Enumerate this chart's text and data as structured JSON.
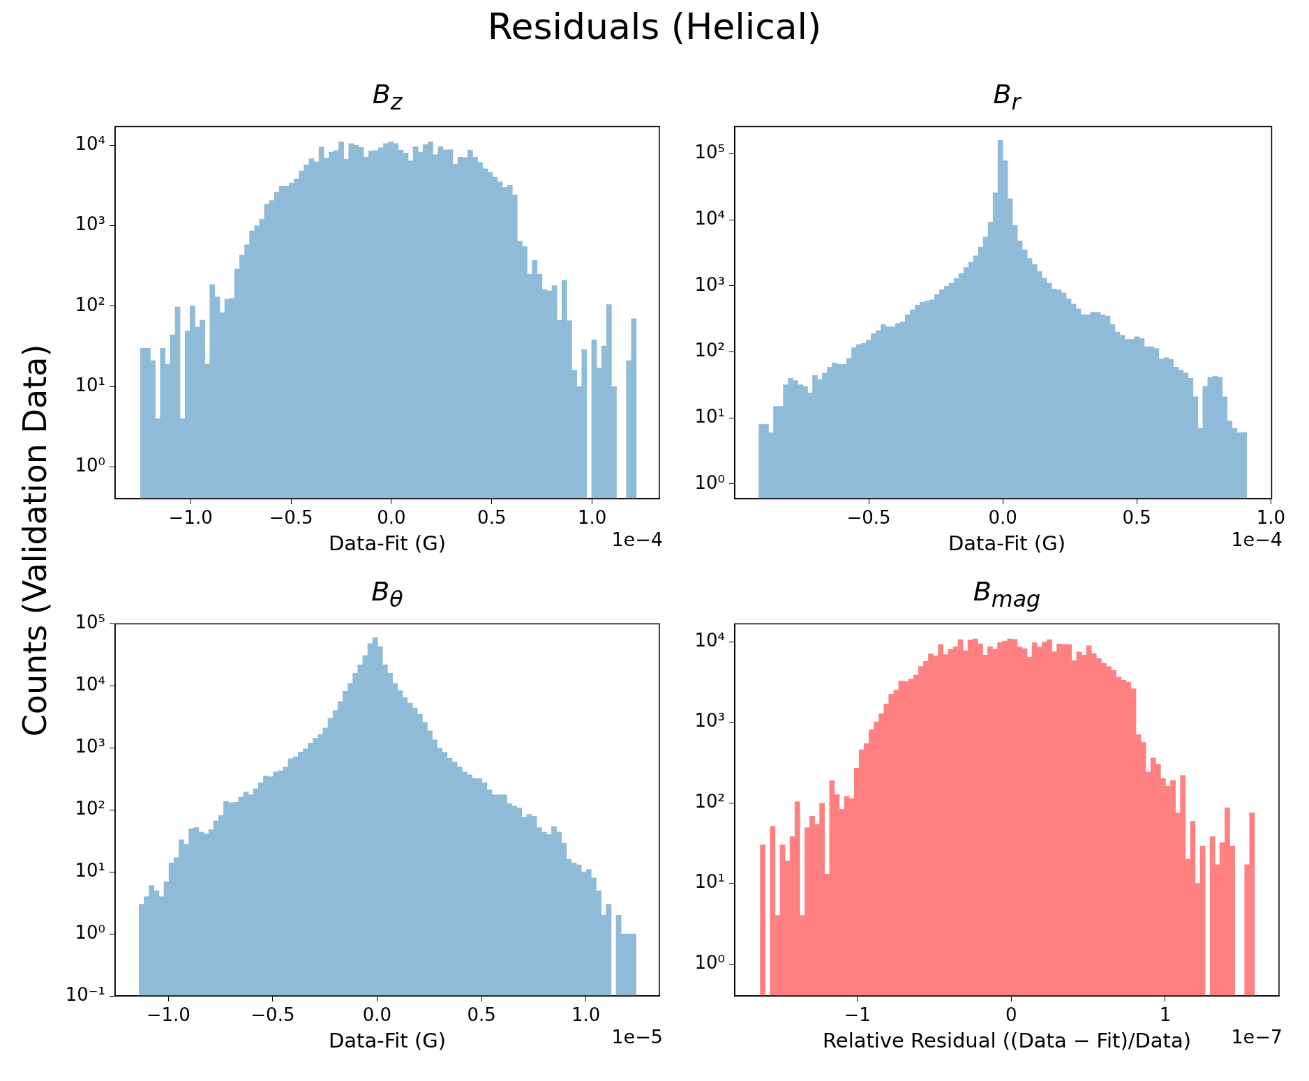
{
  "chart_data": [
    {
      "type": "histogram",
      "title": "B$_{z}$",
      "xlabel": "Data-Fit (G)",
      "ylabel": "Counts (Validation Data)",
      "annotations": [
        "Residuals (Helical)",
        "1e−4"
      ],
      "color": "#8fbbd9",
      "log": "y",
      "xlim": [
        -1.376,
        1.335
      ],
      "ylim": [
        0.405,
        17000
      ],
      "xticks": [
        {
          "value": -1,
          "label": "−1.0"
        },
        {
          "value": -0.5,
          "label": "−0.5"
        },
        {
          "value": 0,
          "label": "0.0"
        },
        {
          "value": 0.5,
          "label": "0.5"
        },
        {
          "value": 1,
          "label": "1.0"
        }
      ],
      "yticks": [
        {
          "value": 1,
          "label": "10⁰"
        },
        {
          "value": 10,
          "label": "10¹"
        },
        {
          "value": 100,
          "label": "10²"
        },
        {
          "value": 1000,
          "label": "10³"
        },
        {
          "value": 10000,
          "label": "10⁴"
        }
      ],
      "bins": [
        -1.25,
        -1.2253,
        -1.2006,
        -1.1759,
        -1.1512,
        -1.1265,
        -1.1018,
        -1.0771,
        -1.0524,
        -1.0277,
        -1.003,
        -0.9783,
        -0.9536,
        -0.9289,
        -0.9042,
        -0.8795,
        -0.8548,
        -0.8301,
        -0.8054,
        -0.7807,
        -0.756,
        -0.7313,
        -0.7066,
        -0.6819,
        -0.6572,
        -0.6325,
        -0.6078,
        -0.5831,
        -0.5584,
        -0.5337,
        -0.509,
        -0.4843,
        -0.4596,
        -0.4349,
        -0.4102,
        -0.3855,
        -0.3608,
        -0.3361,
        -0.3114,
        -0.2867,
        -0.262,
        -0.2373,
        -0.2126,
        -0.1879,
        -0.1632,
        -0.1385,
        -0.1138,
        -0.0891,
        -0.0644,
        -0.0397,
        -0.015,
        0.0097,
        0.0344,
        0.0591,
        0.0838,
        0.1085,
        0.1332,
        0.1579,
        0.1826,
        0.2073,
        0.232,
        0.2567,
        0.2814,
        0.3061,
        0.3308,
        0.3555,
        0.3802,
        0.4049,
        0.4296,
        0.4543,
        0.479,
        0.5037,
        0.5284,
        0.5531,
        0.5778,
        0.6025,
        0.6272,
        0.6519,
        0.6766,
        0.7013,
        0.726,
        0.7507,
        0.7754,
        0.8001,
        0.8248,
        0.8495,
        0.8742,
        0.8989,
        0.9236,
        0.9483,
        0.973,
        0.9977,
        1.0224,
        1.0471,
        1.0718,
        1.0965,
        1.1212,
        1.1459,
        1.1706,
        1.1953,
        1.22
      ],
      "values": [
        30,
        30,
        21,
        4,
        30,
        19,
        44,
        98,
        4,
        49,
        100,
        55,
        67,
        19,
        185,
        130,
        83,
        122,
        125,
        290,
        430,
        580,
        860,
        1000,
        1200,
        1850,
        2050,
        2600,
        3100,
        3100,
        3400,
        3800,
        4800,
        5700,
        6800,
        6200,
        9500,
        6900,
        8200,
        8600,
        11000,
        6700,
        10500,
        10000,
        9400,
        7100,
        8400,
        8600,
        9300,
        10500,
        11000,
        10500,
        8700,
        8000,
        6400,
        9600,
        8200,
        10200,
        11000,
        7600,
        9600,
        8700,
        8800,
        5800,
        7100,
        7000,
        8700,
        7100,
        6100,
        5100,
        4600,
        4000,
        3500,
        3000,
        3200,
        2400,
        640,
        550,
        250,
        370,
        250,
        160,
        155,
        180,
        67,
        210,
        66,
        16,
        10,
        29,
        null,
        38,
        17,
        32,
        105,
        10,
        null,
        null,
        21,
        70
      ]
    },
    {
      "type": "histogram",
      "title": "B$_{r}$",
      "xlabel": "Data-Fit (G)",
      "annotations": [
        "1e−4"
      ],
      "color": "#8fbbd9",
      "log": "y",
      "xlim": [
        -1.0,
        1.003
      ],
      "ylim": [
        0.61,
        258000
      ],
      "xticks": [
        {
          "value": -0.5,
          "label": "−0.5"
        },
        {
          "value": 0,
          "label": "0.0"
        },
        {
          "value": 0.5,
          "label": "0.5"
        },
        {
          "value": 1,
          "label": "1.0"
        }
      ],
      "yticks": [
        {
          "value": 1,
          "label": "10⁰"
        },
        {
          "value": 10,
          "label": "10¹"
        },
        {
          "value": 100,
          "label": "10²"
        },
        {
          "value": 1000,
          "label": "10³"
        },
        {
          "value": 10000,
          "label": "10⁴"
        },
        {
          "value": 100000,
          "label": "10⁵"
        }
      ],
      "bins": [
        -0.91,
        -0.8918,
        -0.8736,
        -0.8554,
        -0.8372,
        -0.819,
        -0.8008,
        -0.7826,
        -0.7644,
        -0.7462,
        -0.728,
        -0.7098,
        -0.6916,
        -0.6734,
        -0.6552,
        -0.637,
        -0.6188,
        -0.6006,
        -0.5824,
        -0.5642,
        -0.546,
        -0.5278,
        -0.5096,
        -0.4914,
        -0.4732,
        -0.455,
        -0.4368,
        -0.4186,
        -0.4004,
        -0.3822,
        -0.364,
        -0.3458,
        -0.3276,
        -0.3094,
        -0.2912,
        -0.273,
        -0.2548,
        -0.2366,
        -0.2184,
        -0.2002,
        -0.182,
        -0.1638,
        -0.1456,
        -0.1274,
        -0.1092,
        -0.091,
        -0.0728,
        -0.0546,
        -0.0364,
        -0.0182,
        0,
        0.0182,
        0.0364,
        0.0546,
        0.0728,
        0.091,
        0.1092,
        0.1274,
        0.1456,
        0.1638,
        0.182,
        0.2002,
        0.2184,
        0.2366,
        0.2548,
        0.273,
        0.2912,
        0.3094,
        0.3276,
        0.3458,
        0.364,
        0.3822,
        0.4004,
        0.4186,
        0.4368,
        0.455,
        0.4732,
        0.4914,
        0.5096,
        0.5278,
        0.546,
        0.5642,
        0.5824,
        0.6006,
        0.6188,
        0.637,
        0.6552,
        0.6734,
        0.6916,
        0.7098,
        0.728,
        0.7462,
        0.7644,
        0.7826,
        0.8008,
        0.819,
        0.8372,
        0.8554,
        0.8736,
        0.8918,
        0.91
      ],
      "values": [
        8,
        8,
        6,
        15,
        15,
        32,
        40,
        37,
        32,
        30,
        24,
        44,
        38,
        48,
        59,
        68,
        65,
        65,
        80,
        116,
        130,
        135,
        150,
        190,
        210,
        260,
        240,
        240,
        270,
        285,
        365,
        435,
        515,
        565,
        590,
        615,
        740,
        870,
        990,
        1100,
        1300,
        1550,
        1900,
        2280,
        2850,
        3900,
        5500,
        9200,
        25800,
        160000,
        79000,
        21000,
        8200,
        4800,
        3500,
        2600,
        2100,
        1660,
        1300,
        1100,
        900,
        870,
        780,
        630,
        530,
        450,
        365,
        365,
        400,
        400,
        365,
        350,
        260,
        200,
        180,
        155,
        155,
        170,
        160,
        120,
        120,
        113,
        78,
        82,
        77,
        59,
        53,
        48,
        40,
        21,
        7,
        30,
        41,
        43,
        41,
        21,
        9,
        7,
        6,
        6
      ]
    },
    {
      "type": "histogram",
      "title": "B$_{θ}$",
      "xlabel": "Data-Fit (G)",
      "annotations": [
        "1e−5"
      ],
      "color": "#8fbbd9",
      "log": "y",
      "xlim": [
        -1.255,
        1.352
      ],
      "ylim": [
        0.1,
        100000
      ],
      "xticks": [
        {
          "value": -1,
          "label": "−1.0"
        },
        {
          "value": -0.5,
          "label": "−0.5"
        },
        {
          "value": 0,
          "label": "0.0"
        },
        {
          "value": 0.5,
          "label": "0.5"
        },
        {
          "value": 1,
          "label": "1.0"
        }
      ],
      "yticks": [
        {
          "value": 0.1,
          "label": "10⁻¹"
        },
        {
          "value": 1,
          "label": "10⁰"
        },
        {
          "value": 10,
          "label": "10¹"
        },
        {
          "value": 100,
          "label": "10²"
        },
        {
          "value": 1000,
          "label": "10³"
        },
        {
          "value": 10000,
          "label": "10⁴"
        },
        {
          "value": 100000,
          "label": "10⁵"
        }
      ],
      "bins": [
        -1.14,
        -1.1162,
        -1.0924,
        -1.0686,
        -1.0448,
        -1.021,
        -0.9972,
        -0.9734,
        -0.9496,
        -0.9258,
        -0.902,
        -0.8782,
        -0.8544,
        -0.8306,
        -0.8068,
        -0.783,
        -0.7592,
        -0.7354,
        -0.7116,
        -0.6878,
        -0.664,
        -0.6402,
        -0.6164,
        -0.5926,
        -0.5688,
        -0.545,
        -0.5212,
        -0.4974,
        -0.4736,
        -0.4498,
        -0.426,
        -0.4022,
        -0.3784,
        -0.3546,
        -0.3308,
        -0.307,
        -0.2832,
        -0.2594,
        -0.2356,
        -0.2118,
        -0.188,
        -0.1642,
        -0.1404,
        -0.1166,
        -0.0928,
        -0.069,
        -0.0452,
        -0.0214,
        0.0024,
        0.0262,
        0.05,
        0.0738,
        0.0976,
        0.1214,
        0.1452,
        0.169,
        0.1928,
        0.2166,
        0.2404,
        0.2642,
        0.288,
        0.3118,
        0.3356,
        0.3594,
        0.3832,
        0.407,
        0.4308,
        0.4546,
        0.4784,
        0.5022,
        0.526,
        0.5498,
        0.5736,
        0.5974,
        0.6212,
        0.645,
        0.6688,
        0.6926,
        0.7164,
        0.7402,
        0.764,
        0.7878,
        0.8116,
        0.8354,
        0.8592,
        0.883,
        0.9068,
        0.9306,
        0.9544,
        0.9782,
        1.002,
        1.0258,
        1.0496,
        1.0734,
        1.0972,
        1.121,
        1.1448,
        1.1686,
        1.1924,
        1.2162,
        1.24
      ],
      "values": [
        3,
        4,
        6,
        5,
        4,
        7,
        14,
        17,
        33,
        28,
        50,
        52,
        44,
        41,
        48,
        67,
        81,
        137,
        130,
        133,
        160,
        195,
        175,
        220,
        275,
        350,
        345,
        410,
        430,
        490,
        670,
        720,
        860,
        970,
        1190,
        1430,
        1650,
        2100,
        3000,
        4000,
        5600,
        8200,
        11000,
        16000,
        22000,
        31000,
        48000,
        60000,
        43000,
        22000,
        16000,
        11000,
        8400,
        6500,
        5300,
        4400,
        3500,
        2600,
        1880,
        1350,
        980,
        850,
        680,
        590,
        490,
        410,
        370,
        320,
        320,
        275,
        210,
        175,
        175,
        175,
        126,
        115,
        107,
        76,
        85,
        79,
        52,
        44,
        40,
        54,
        44,
        29,
        16,
        14,
        13,
        10,
        11,
        8,
        5,
        2,
        3,
        null,
        2,
        1,
        1,
        1
      ]
    },
    {
      "type": "histogram",
      "title": "B$_{mag}$",
      "xlabel": "Relative Residual ((Data − Fit)/Data)",
      "annotations": [
        "1e−7"
      ],
      "color": "#ff8080",
      "log": "y",
      "xlim": [
        -1.796,
        1.739
      ],
      "ylim": [
        0.4,
        16600
      ],
      "xticks": [
        {
          "value": -1,
          "label": "−1"
        },
        {
          "value": 0,
          "label": "0"
        },
        {
          "value": 1,
          "label": "1"
        }
      ],
      "yticks": [
        {
          "value": 1,
          "label": "10⁰"
        },
        {
          "value": 10,
          "label": "10¹"
        },
        {
          "value": 100,
          "label": "10²"
        },
        {
          "value": 1000,
          "label": "10³"
        },
        {
          "value": 10000,
          "label": "10⁴"
        }
      ],
      "bins": [
        -1.63,
        -1.5979,
        -1.5658,
        -1.5337,
        -1.5016,
        -1.4695,
        -1.4374,
        -1.4053,
        -1.3732,
        -1.3411,
        -1.309,
        -1.2769,
        -1.2448,
        -1.2127,
        -1.1806,
        -1.1485,
        -1.1164,
        -1.0843,
        -1.0522,
        -1.0201,
        -0.988,
        -0.9559,
        -0.9238,
        -0.8917,
        -0.8596,
        -0.8275,
        -0.7954,
        -0.7633,
        -0.7312,
        -0.6991,
        -0.667,
        -0.6349,
        -0.6028,
        -0.5707,
        -0.5386,
        -0.5065,
        -0.4744,
        -0.4423,
        -0.4102,
        -0.3781,
        -0.346,
        -0.3139,
        -0.2818,
        -0.2497,
        -0.2176,
        -0.1855,
        -0.1534,
        -0.1213,
        -0.0892,
        -0.0571,
        -0.025,
        0.0071,
        0.0392,
        0.0713,
        0.1034,
        0.1355,
        0.1676,
        0.1997,
        0.2318,
        0.2639,
        0.296,
        0.3281,
        0.3602,
        0.3923,
        0.4244,
        0.4565,
        0.4886,
        0.5207,
        0.5528,
        0.5849,
        0.617,
        0.6491,
        0.6812,
        0.7133,
        0.7454,
        0.7775,
        0.8096,
        0.8417,
        0.8738,
        0.9059,
        0.938,
        0.9701,
        1.0022,
        1.0343,
        1.0664,
        1.0985,
        1.1306,
        1.1627,
        1.1948,
        1.2269,
        1.259,
        1.2911,
        1.3232,
        1.3553,
        1.3874,
        1.4195,
        1.4516,
        1.4837,
        1.5158,
        1.5479,
        1.58
      ],
      "values": [
        30,
        null,
        51,
        4,
        30,
        19,
        38,
        103,
        4,
        49,
        68,
        54,
        99,
        13,
        188,
        126,
        83,
        120,
        113,
        270,
        455,
        545,
        810,
        1010,
        1270,
        1680,
        2230,
        2500,
        3250,
        3200,
        3420,
        3840,
        4920,
        5700,
        7050,
        6670,
        9240,
        6900,
        8000,
        8640,
        10600,
        7700,
        10500,
        10800,
        9350,
        6800,
        8640,
        8060,
        9700,
        10200,
        10800,
        10700,
        8640,
        8200,
        6400,
        9700,
        8550,
        9900,
        10600,
        7500,
        9350,
        9240,
        9240,
        5820,
        7460,
        6800,
        8900,
        7100,
        6160,
        5380,
        4920,
        4400,
        3630,
        3320,
        3140,
        2600,
        700,
        560,
        240,
        360,
        300,
        200,
        160,
        190,
        75,
        218,
        20,
        59,
        10,
        29,
        null,
        38,
        17,
        32,
        87,
        29,
        null,
        null,
        17,
        75
      ]
    }
  ]
}
